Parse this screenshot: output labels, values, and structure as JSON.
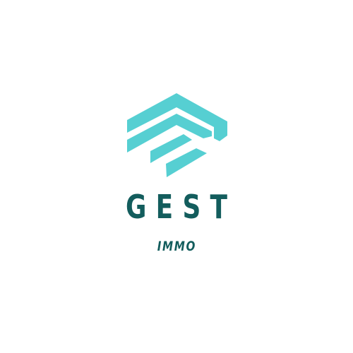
{
  "logo": {
    "name": "GEST",
    "tagline": "IMMO",
    "icon": "house-roof-stripes-icon",
    "colors": {
      "accent": "#56cfd2",
      "text": "#135d5d",
      "background": "#ffffff"
    }
  }
}
